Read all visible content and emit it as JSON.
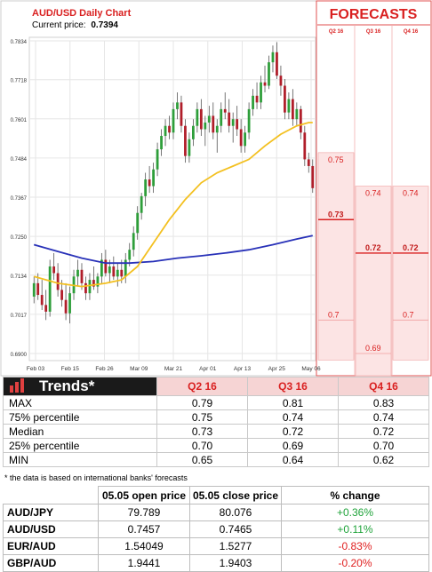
{
  "chart_data": {
    "type": "candlestick",
    "title": "AUD/USD Daily Chart",
    "current_price_label": "Current price:",
    "current_price": "0.7394",
    "y_ticks": [
      "0.7834",
      "0.7718",
      "0.7601",
      "0.7484",
      "0.7367",
      "0.7250",
      "0.7134",
      "0.7017",
      "0.6900"
    ],
    "ylim": [
      0.69,
      0.7834
    ],
    "x_ticks": [
      "Feb 03",
      "Feb 15",
      "Feb 26",
      "Mar 09",
      "Mar 21",
      "Apr 01",
      "Apr 13",
      "Apr 25",
      "May 06"
    ],
    "candles": [
      [
        0.707,
        0.713,
        0.705,
        0.711
      ],
      [
        0.711,
        0.714,
        0.706,
        0.7075
      ],
      [
        0.7075,
        0.712,
        0.703,
        0.7045
      ],
      [
        0.7045,
        0.709,
        0.7,
        0.7025
      ],
      [
        0.7025,
        0.718,
        0.701,
        0.716
      ],
      [
        0.716,
        0.72,
        0.712,
        0.714
      ],
      [
        0.714,
        0.717,
        0.707,
        0.709
      ],
      [
        0.709,
        0.712,
        0.704,
        0.706
      ],
      [
        0.706,
        0.711,
        0.7,
        0.702
      ],
      [
        0.702,
        0.71,
        0.699,
        0.708
      ],
      [
        0.708,
        0.715,
        0.706,
        0.713
      ],
      [
        0.713,
        0.718,
        0.71,
        0.715
      ],
      [
        0.715,
        0.717,
        0.709,
        0.711
      ],
      [
        0.711,
        0.713,
        0.706,
        0.708
      ],
      [
        0.708,
        0.714,
        0.706,
        0.712
      ],
      [
        0.712,
        0.716,
        0.709,
        0.71
      ],
      [
        0.71,
        0.714,
        0.708,
        0.713
      ],
      [
        0.713,
        0.72,
        0.711,
        0.718
      ],
      [
        0.718,
        0.721,
        0.713,
        0.714
      ],
      [
        0.714,
        0.718,
        0.711,
        0.716
      ],
      [
        0.716,
        0.719,
        0.712,
        0.713
      ],
      [
        0.713,
        0.717,
        0.71,
        0.715
      ],
      [
        0.715,
        0.718,
        0.711,
        0.713
      ],
      [
        0.713,
        0.72,
        0.711,
        0.718
      ],
      [
        0.718,
        0.723,
        0.716,
        0.721
      ],
      [
        0.721,
        0.728,
        0.719,
        0.726
      ],
      [
        0.726,
        0.734,
        0.724,
        0.732
      ],
      [
        0.732,
        0.738,
        0.73,
        0.737
      ],
      [
        0.737,
        0.744,
        0.734,
        0.742
      ],
      [
        0.742,
        0.746,
        0.738,
        0.74
      ],
      [
        0.74,
        0.747,
        0.738,
        0.745
      ],
      [
        0.745,
        0.753,
        0.743,
        0.751
      ],
      [
        0.751,
        0.757,
        0.749,
        0.755
      ],
      [
        0.755,
        0.76,
        0.752,
        0.758
      ],
      [
        0.758,
        0.761,
        0.754,
        0.756
      ],
      [
        0.756,
        0.765,
        0.754,
        0.763
      ],
      [
        0.763,
        0.768,
        0.76,
        0.765
      ],
      [
        0.765,
        0.767,
        0.756,
        0.758
      ],
      [
        0.758,
        0.76,
        0.747,
        0.749
      ],
      [
        0.749,
        0.756,
        0.747,
        0.754
      ],
      [
        0.754,
        0.76,
        0.752,
        0.758
      ],
      [
        0.758,
        0.765,
        0.756,
        0.763
      ],
      [
        0.763,
        0.766,
        0.755,
        0.757
      ],
      [
        0.757,
        0.761,
        0.752,
        0.759
      ],
      [
        0.759,
        0.764,
        0.756,
        0.761
      ],
      [
        0.761,
        0.765,
        0.754,
        0.756
      ],
      [
        0.756,
        0.76,
        0.75,
        0.758
      ],
      [
        0.758,
        0.765,
        0.756,
        0.763
      ],
      [
        0.763,
        0.768,
        0.76,
        0.762
      ],
      [
        0.762,
        0.766,
        0.756,
        0.758
      ],
      [
        0.758,
        0.762,
        0.753,
        0.76
      ],
      [
        0.76,
        0.764,
        0.755,
        0.757
      ],
      [
        0.757,
        0.76,
        0.75,
        0.752
      ],
      [
        0.752,
        0.758,
        0.75,
        0.756
      ],
      [
        0.756,
        0.765,
        0.754,
        0.763
      ],
      [
        0.763,
        0.769,
        0.761,
        0.767
      ],
      [
        0.767,
        0.771,
        0.763,
        0.765
      ],
      [
        0.765,
        0.773,
        0.763,
        0.771
      ],
      [
        0.771,
        0.776,
        0.768,
        0.77
      ],
      [
        0.77,
        0.779,
        0.769,
        0.777
      ],
      [
        0.777,
        0.782,
        0.774,
        0.78
      ],
      [
        0.78,
        0.783,
        0.772,
        0.773
      ],
      [
        0.773,
        0.776,
        0.767,
        0.77
      ],
      [
        0.77,
        0.772,
        0.76,
        0.762
      ],
      [
        0.762,
        0.768,
        0.76,
        0.766
      ],
      [
        0.766,
        0.769,
        0.758,
        0.76
      ],
      [
        0.76,
        0.765,
        0.758,
        0.763
      ],
      [
        0.763,
        0.764,
        0.754,
        0.756
      ],
      [
        0.756,
        0.758,
        0.746,
        0.748
      ],
      [
        0.748,
        0.75,
        0.744,
        0.746
      ],
      [
        0.746,
        0.748,
        0.738,
        0.7394
      ]
    ],
    "ma_fast": [
      [
        0,
        0.713
      ],
      [
        6,
        0.711
      ],
      [
        12,
        0.71
      ],
      [
        18,
        0.711
      ],
      [
        22,
        0.712
      ],
      [
        26,
        0.716
      ],
      [
        30,
        0.723
      ],
      [
        34,
        0.73
      ],
      [
        38,
        0.736
      ],
      [
        42,
        0.741
      ],
      [
        46,
        0.744
      ],
      [
        50,
        0.746
      ],
      [
        54,
        0.748
      ],
      [
        58,
        0.752
      ],
      [
        62,
        0.7555
      ],
      [
        66,
        0.758
      ],
      [
        69,
        0.759
      ],
      [
        70,
        0.759
      ]
    ],
    "ma_slow": [
      [
        0,
        0.7225
      ],
      [
        6,
        0.7205
      ],
      [
        12,
        0.7185
      ],
      [
        18,
        0.717
      ],
      [
        24,
        0.717
      ],
      [
        30,
        0.7175
      ],
      [
        36,
        0.7185
      ],
      [
        42,
        0.7192
      ],
      [
        48,
        0.72
      ],
      [
        54,
        0.721
      ],
      [
        60,
        0.7225
      ],
      [
        66,
        0.7242
      ],
      [
        70,
        0.7252
      ]
    ],
    "forecasts": {
      "title": "FORECASTS",
      "quarters": [
        "Q2 16",
        "Q3 16",
        "Q4 16"
      ],
      "max": [
        "0.75",
        "0.74",
        "0.74"
      ],
      "median": [
        "0.73",
        "0.72",
        "0.72"
      ],
      "min": [
        "0.7",
        "0.69",
        "0.7"
      ],
      "max_v": [
        0.75,
        0.74,
        0.74
      ],
      "median_v": [
        0.73,
        0.72,
        0.72
      ],
      "min_v": [
        0.7,
        0.69,
        0.7
      ]
    }
  },
  "trends": {
    "title": "Trends*",
    "columns": [
      "Q2 16",
      "Q3 16",
      "Q4 16"
    ],
    "rows": [
      {
        "label": "MAX",
        "values": [
          "0.79",
          "0.81",
          "0.83"
        ]
      },
      {
        "label": "75% percentile",
        "values": [
          "0.75",
          "0.74",
          "0.74"
        ]
      },
      {
        "label": "Median",
        "values": [
          "0.73",
          "0.72",
          "0.72"
        ]
      },
      {
        "label": "25% percentile",
        "values": [
          "0.70",
          "0.69",
          "0.70"
        ]
      },
      {
        "label": "MIN",
        "values": [
          "0.65",
          "0.64",
          "0.62"
        ]
      }
    ],
    "note": "* the data is based on international banks' forecasts"
  },
  "fx": {
    "headers": [
      "05.05 open price",
      "05.05 close price",
      "% change"
    ],
    "rows": [
      {
        "pair": "AUD/JPY",
        "open": "79.789",
        "close": "80.076",
        "change": "+0.36%",
        "dir": "pos"
      },
      {
        "pair": "AUD/USD",
        "open": "0.7457",
        "close": "0.7465",
        "change": "+0.11%",
        "dir": "pos"
      },
      {
        "pair": "EUR/AUD",
        "open": "1.54049",
        "close": "1.5277",
        "change": "-0.83%",
        "dir": "neg"
      },
      {
        "pair": "GBP/AUD",
        "open": "1.9441",
        "close": "1.9403",
        "change": "-0.20%",
        "dir": "neg"
      }
    ]
  },
  "colors": {
    "bull": "#2e9e3a",
    "bear": "#b01e2a",
    "ma_fast": "#f3c020",
    "ma_slow": "#2831b8",
    "accent": "#d92020",
    "forecast_bg": "#fce4e4"
  }
}
